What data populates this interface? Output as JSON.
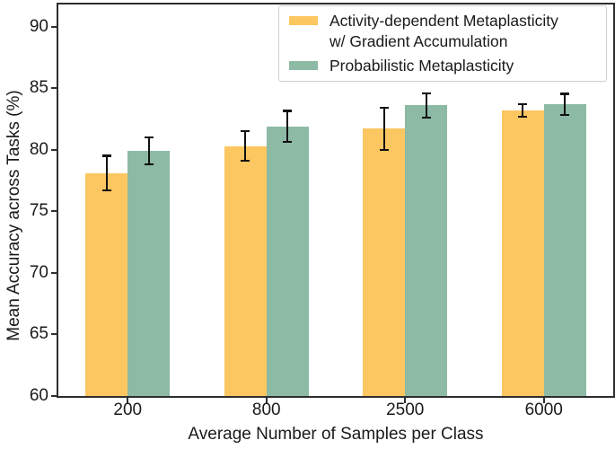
{
  "figure": {
    "background": "#ffffff",
    "text_color": "#1a1a1a",
    "spine_color": "#2e2e2e"
  },
  "chart_data": {
    "type": "bar",
    "xlabel": "Average Number of Samples per Class",
    "ylabel": "Mean Accuracy across Tasks (%)",
    "categories": [
      "200",
      "800",
      "2500",
      "6000"
    ],
    "series": [
      {
        "name": "Activity-dependent Metaplasticity w/ Gradient Accumulation",
        "color": "#FCC660",
        "values": [
          78.1,
          80.3,
          81.7,
          83.2
        ],
        "errors": [
          1.4,
          1.2,
          1.7,
          0.5
        ]
      },
      {
        "name": "Probabilistic Metaplasticity",
        "color": "#8CBAA4",
        "values": [
          79.9,
          81.9,
          83.6,
          83.7
        ],
        "errors": [
          1.1,
          1.25,
          1.0,
          0.85
        ]
      }
    ],
    "ylim": [
      60,
      91.8
    ],
    "yticks": [
      60,
      65,
      70,
      75,
      80,
      85,
      90
    ],
    "grid": false,
    "legend_position": "upper-right",
    "error_bar_color": "#111111"
  },
  "legend": {
    "items": [
      {
        "line1": "Activity-dependent Metaplasticity",
        "line2": "w/ Gradient Accumulation"
      },
      {
        "line1": "Probabilistic Metaplasticity"
      }
    ]
  }
}
